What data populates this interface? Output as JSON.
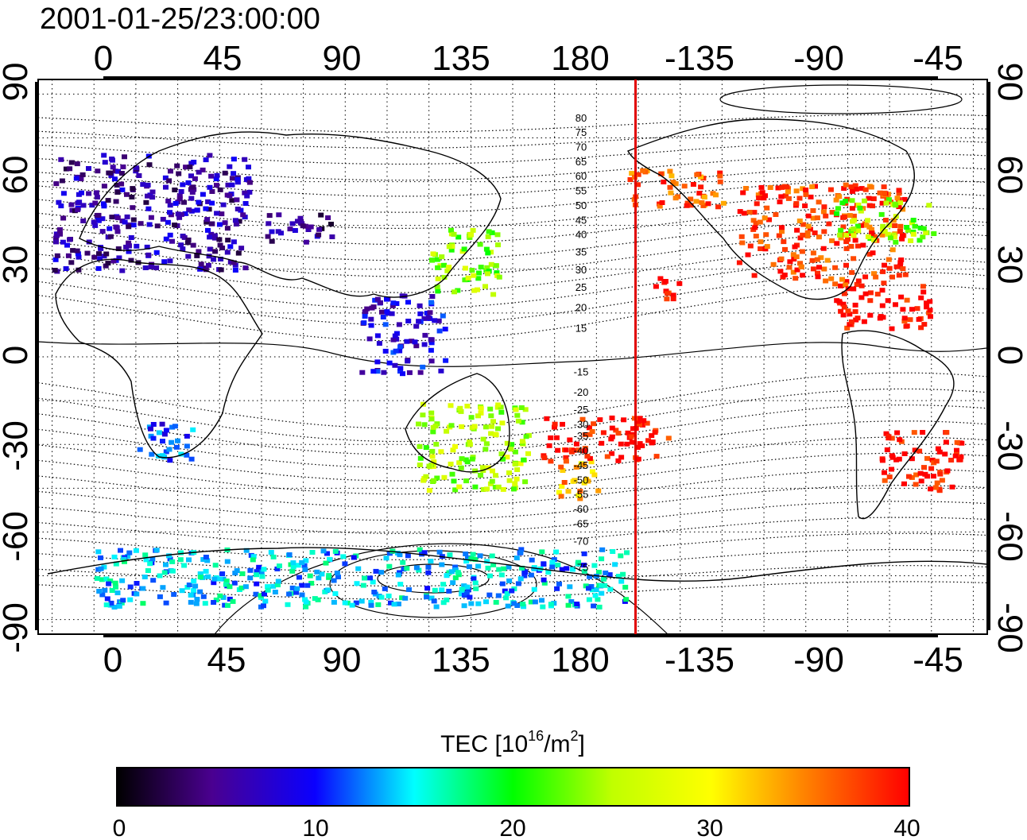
{
  "title": "2001-01-25/23:00:00",
  "map": {
    "top_lon_ticks": [
      "0",
      "45",
      "90",
      "135",
      "180",
      "-135",
      "-90",
      "-45"
    ],
    "bottom_lon_ticks": [
      "0",
      "45",
      "90",
      "135",
      "180",
      "-135",
      "-90",
      "-45"
    ],
    "left_lat_ticks": [
      "90",
      "60",
      "30",
      "0",
      "-30",
      "-60",
      "-90"
    ],
    "right_lat_ticks": [
      "90",
      "60",
      "30",
      "0",
      "-30",
      "-60",
      "-90"
    ],
    "lon_range": [
      -20,
      320
    ],
    "lat_range": [
      -95,
      95
    ],
    "terminator_lon": 194,
    "terminator_color": "#e00000"
  },
  "contour_labels": {
    "north": [
      "80",
      "75",
      "70",
      "65",
      "60",
      "55",
      "50",
      "45",
      "40",
      "35",
      "30",
      "25",
      "20",
      "15"
    ],
    "south": [
      "-15",
      "-20",
      "-25",
      "-30",
      "-35",
      "-40",
      "-45",
      "-50",
      "-55",
      "-60",
      "-65",
      "-70",
      "-75"
    ]
  },
  "colorbar": {
    "title_prefix": "TEC  [10",
    "title_sup1": "16",
    "title_mid": "/m",
    "title_sup2": "2",
    "title_suffix": "]",
    "ticks": [
      "0",
      "10",
      "20",
      "30",
      "40"
    ],
    "min": 0,
    "max": 40,
    "colors": [
      "#000000",
      "#4a0090",
      "#0a00ff",
      "#00ffff",
      "#00ff00",
      "#ffff00",
      "#ff8000",
      "#ff0000"
    ]
  },
  "tec_regions": [
    {
      "name": "europe",
      "lon": [
        -15,
        55
      ],
      "lat": [
        30,
        70
      ],
      "tec": 6
    },
    {
      "name": "central-asia",
      "lon": [
        60,
        85
      ],
      "lat": [
        40,
        50
      ],
      "tec": 5
    },
    {
      "name": "japan-china",
      "lon": [
        120,
        145
      ],
      "lat": [
        22,
        45
      ],
      "tec": 24
    },
    {
      "name": "southeast-asia",
      "lon": [
        95,
        125
      ],
      "lat": [
        -5,
        22
      ],
      "tec": 8
    },
    {
      "name": "australia",
      "lon": [
        115,
        155
      ],
      "lat": [
        -45,
        -15
      ],
      "tec": 25
    },
    {
      "name": "new-zealand",
      "lon": [
        165,
        180
      ],
      "lat": [
        -48,
        -35
      ],
      "tec": 33
    },
    {
      "name": "pacific-south",
      "lon": [
        160,
        205
      ],
      "lat": [
        -35,
        -20
      ],
      "tec": 40
    },
    {
      "name": "alaska",
      "lon": [
        190,
        225
      ],
      "lat": [
        52,
        65
      ],
      "tec": 36
    },
    {
      "name": "north-america",
      "lon": [
        230,
        290
      ],
      "lat": [
        25,
        60
      ],
      "tec": 38
    },
    {
      "name": "eastern-canada",
      "lon": [
        265,
        300
      ],
      "lat": [
        40,
        55
      ],
      "tec": 24
    },
    {
      "name": "hawaii",
      "lon": [
        200,
        210
      ],
      "lat": [
        18,
        28
      ],
      "tec": 40
    },
    {
      "name": "caribbean",
      "lon": [
        265,
        300
      ],
      "lat": [
        10,
        25
      ],
      "tec": 40
    },
    {
      "name": "south-america",
      "lon": [
        280,
        310
      ],
      "lat": [
        -45,
        -25
      ],
      "tec": 40
    },
    {
      "name": "south-africa",
      "lon": [
        15,
        35
      ],
      "lat": [
        -35,
        -22
      ],
      "tec": 11
    },
    {
      "name": "antarctica",
      "lon": [
        0,
        190
      ],
      "lat": [
        -85,
        -65
      ],
      "tec": 14
    }
  ]
}
